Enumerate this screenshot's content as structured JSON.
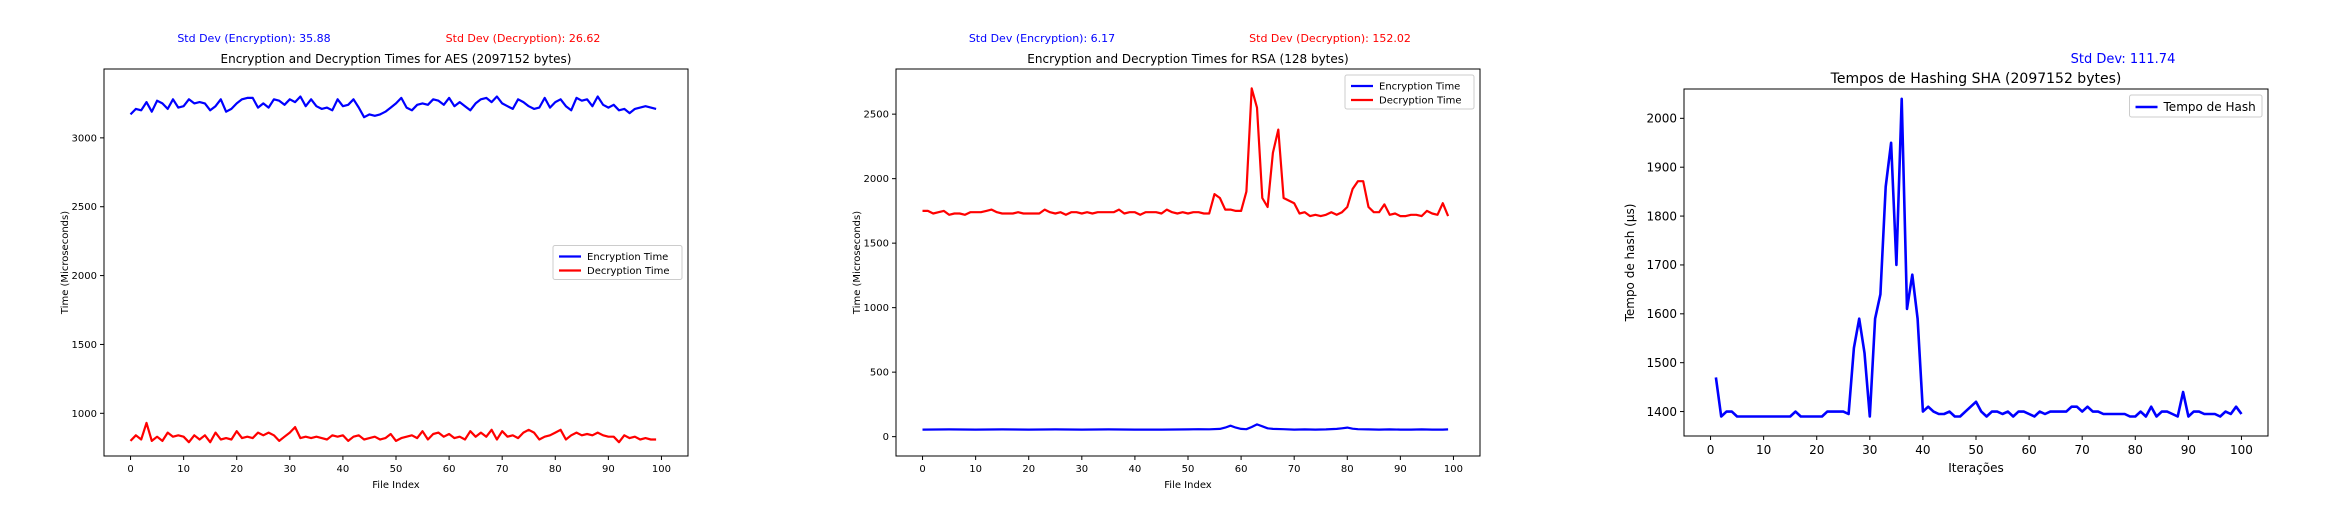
{
  "chart_data": [
    {
      "type": "line",
      "title": "Encryption and Decryption Times for AES (2097152 bytes)",
      "xlabel": "File Index",
      "ylabel": "Time (Microseconds)",
      "annotations": [
        "Std Dev (Encryption): 35.88",
        "Std Dev (Decryption): 26.62"
      ],
      "annotation_colors": [
        "#0000ff",
        "#ff0000"
      ],
      "xlim": [
        -5,
        105
      ],
      "ylim": [
        690,
        3500
      ],
      "xticks": [
        0,
        10,
        20,
        30,
        40,
        50,
        60,
        70,
        80,
        90,
        100
      ],
      "yticks": [
        1000,
        1500,
        2000,
        2500,
        3000
      ],
      "legend_position": "center-right",
      "grid": false,
      "series": [
        {
          "name": "Encryption Time",
          "color": "#0000ff",
          "x": [
            0,
            1,
            2,
            3,
            4,
            5,
            6,
            7,
            8,
            9,
            10,
            11,
            12,
            13,
            14,
            15,
            16,
            17,
            18,
            19,
            20,
            21,
            22,
            23,
            24,
            25,
            26,
            27,
            28,
            29,
            30,
            31,
            32,
            33,
            34,
            35,
            36,
            37,
            38,
            39,
            40,
            41,
            42,
            43,
            44,
            45,
            46,
            47,
            48,
            49,
            50,
            51,
            52,
            53,
            54,
            55,
            56,
            57,
            58,
            59,
            60,
            61,
            62,
            63,
            64,
            65,
            66,
            67,
            68,
            69,
            70,
            71,
            72,
            73,
            74,
            75,
            76,
            77,
            78,
            79,
            80,
            81,
            82,
            83,
            84,
            85,
            86,
            87,
            88,
            89,
            90,
            91,
            92,
            93,
            94,
            95,
            96,
            97,
            98,
            99
          ],
          "values": [
            3170,
            3210,
            3200,
            3260,
            3190,
            3270,
            3250,
            3210,
            3280,
            3220,
            3230,
            3280,
            3250,
            3260,
            3250,
            3200,
            3230,
            3280,
            3190,
            3210,
            3250,
            3280,
            3290,
            3290,
            3220,
            3250,
            3220,
            3280,
            3270,
            3240,
            3280,
            3260,
            3300,
            3230,
            3280,
            3230,
            3210,
            3220,
            3200,
            3280,
            3230,
            3240,
            3280,
            3220,
            3150,
            3170,
            3160,
            3170,
            3190,
            3220,
            3250,
            3290,
            3220,
            3200,
            3240,
            3250,
            3240,
            3280,
            3270,
            3240,
            3290,
            3230,
            3260,
            3230,
            3200,
            3250,
            3280,
            3290,
            3260,
            3300,
            3250,
            3230,
            3210,
            3280,
            3260,
            3230,
            3210,
            3220,
            3290,
            3220,
            3260,
            3280,
            3230,
            3200,
            3290,
            3270,
            3280,
            3230,
            3300,
            3240,
            3220,
            3240,
            3200,
            3210,
            3180,
            3210,
            3220,
            3230,
            3220,
            3210
          ]
        },
        {
          "name": "Decryption Time",
          "color": "#ff0000",
          "x": [
            0,
            1,
            2,
            3,
            4,
            5,
            6,
            7,
            8,
            9,
            10,
            11,
            12,
            13,
            14,
            15,
            16,
            17,
            18,
            19,
            20,
            21,
            22,
            23,
            24,
            25,
            26,
            27,
            28,
            29,
            30,
            31,
            32,
            33,
            34,
            35,
            36,
            37,
            38,
            39,
            40,
            41,
            42,
            43,
            44,
            45,
            46,
            47,
            48,
            49,
            50,
            51,
            52,
            53,
            54,
            55,
            56,
            57,
            58,
            59,
            60,
            61,
            62,
            63,
            64,
            65,
            66,
            67,
            68,
            69,
            70,
            71,
            72,
            73,
            74,
            75,
            76,
            77,
            78,
            79,
            80,
            81,
            82,
            83,
            84,
            85,
            86,
            87,
            88,
            89,
            90,
            91,
            92,
            93,
            94,
            95,
            96,
            97,
            98,
            99
          ],
          "values": [
            800,
            840,
            810,
            930,
            800,
            830,
            800,
            860,
            830,
            840,
            830,
            790,
            840,
            810,
            840,
            790,
            860,
            810,
            820,
            810,
            870,
            820,
            830,
            820,
            860,
            840,
            860,
            840,
            800,
            830,
            860,
            900,
            820,
            830,
            820,
            830,
            820,
            810,
            840,
            830,
            840,
            800,
            830,
            840,
            810,
            820,
            830,
            810,
            820,
            850,
            800,
            820,
            830,
            840,
            820,
            870,
            810,
            850,
            860,
            830,
            850,
            820,
            830,
            810,
            870,
            830,
            860,
            830,
            880,
            810,
            870,
            830,
            840,
            820,
            860,
            880,
            860,
            810,
            830,
            840,
            860,
            880,
            810,
            840,
            860,
            840,
            850,
            840,
            860,
            840,
            830,
            830,
            790,
            840,
            820,
            830,
            810,
            820,
            810,
            810
          ]
        }
      ]
    },
    {
      "type": "line",
      "title": "Encryption and Decryption Times for RSA (128 bytes)",
      "xlabel": "File Index",
      "ylabel": "Time (Microseconds)",
      "annotations": [
        "Std Dev (Encryption): 6.17",
        "Std Dev (Decryption): 152.02"
      ],
      "annotation_colors": [
        "#0000ff",
        "#ff0000"
      ],
      "xlim": [
        -5,
        105
      ],
      "ylim": [
        -150,
        2850
      ],
      "xticks": [
        0,
        10,
        20,
        30,
        40,
        50,
        60,
        70,
        80,
        90,
        100
      ],
      "yticks": [
        0,
        500,
        1000,
        1500,
        2000,
        2500
      ],
      "legend_position": "upper-right",
      "grid": false,
      "series": [
        {
          "name": "Encryption Time",
          "color": "#0000ff",
          "x": [
            0,
            5,
            10,
            15,
            20,
            25,
            30,
            35,
            40,
            45,
            50,
            52,
            54,
            56,
            57,
            58,
            59,
            60,
            61,
            62,
            63,
            64,
            65,
            66,
            68,
            70,
            72,
            74,
            76,
            78,
            79,
            80,
            81,
            82,
            84,
            86,
            88,
            90,
            92,
            94,
            96,
            98,
            99
          ],
          "values": [
            55,
            56,
            55,
            56,
            55,
            56,
            55,
            56,
            55,
            55,
            56,
            58,
            57,
            60,
            70,
            85,
            70,
            60,
            58,
            75,
            95,
            80,
            65,
            60,
            58,
            55,
            56,
            55,
            56,
            60,
            65,
            70,
            62,
            58,
            56,
            55,
            56,
            55,
            55,
            56,
            55,
            55,
            56
          ]
        },
        {
          "name": "Decryption Time",
          "color": "#ff0000",
          "x": [
            0,
            1,
            2,
            3,
            4,
            5,
            6,
            7,
            8,
            9,
            10,
            11,
            12,
            13,
            14,
            15,
            16,
            17,
            18,
            19,
            20,
            21,
            22,
            23,
            24,
            25,
            26,
            27,
            28,
            29,
            30,
            31,
            32,
            33,
            34,
            35,
            36,
            37,
            38,
            39,
            40,
            41,
            42,
            43,
            44,
            45,
            46,
            47,
            48,
            49,
            50,
            51,
            52,
            53,
            54,
            55,
            56,
            57,
            58,
            59,
            60,
            61,
            62,
            63,
            64,
            65,
            66,
            67,
            68,
            69,
            70,
            71,
            72,
            73,
            74,
            75,
            76,
            77,
            78,
            79,
            80,
            81,
            82,
            83,
            84,
            85,
            86,
            87,
            88,
            89,
            90,
            91,
            92,
            93,
            94,
            95,
            96,
            97,
            98,
            99
          ],
          "values": [
            1750,
            1750,
            1730,
            1740,
            1750,
            1720,
            1730,
            1730,
            1720,
            1740,
            1740,
            1740,
            1750,
            1760,
            1740,
            1730,
            1730,
            1730,
            1740,
            1730,
            1730,
            1730,
            1730,
            1760,
            1740,
            1730,
            1740,
            1720,
            1740,
            1740,
            1730,
            1740,
            1730,
            1740,
            1740,
            1740,
            1740,
            1760,
            1730,
            1740,
            1740,
            1720,
            1740,
            1740,
            1740,
            1730,
            1760,
            1740,
            1730,
            1740,
            1730,
            1740,
            1740,
            1730,
            1730,
            1880,
            1850,
            1760,
            1760,
            1750,
            1750,
            1900,
            2700,
            2550,
            1850,
            1780,
            2200,
            2380,
            1850,
            1830,
            1810,
            1730,
            1740,
            1710,
            1720,
            1710,
            1720,
            1740,
            1720,
            1740,
            1780,
            1920,
            1980,
            1980,
            1780,
            1740,
            1740,
            1800,
            1720,
            1730,
            1710,
            1710,
            1720,
            1720,
            1710,
            1750,
            1730,
            1720,
            1810,
            1710
          ]
        }
      ]
    },
    {
      "type": "line",
      "title": "Tempos de Hashing SHA (2097152 bytes)",
      "xlabel": "Iterações",
      "ylabel": "Tempo de hash (µs)",
      "annotations": [
        "Std Dev: 111.74"
      ],
      "annotation_colors": [
        "#0000ff"
      ],
      "xlim": [
        -5,
        105
      ],
      "ylim": [
        1350,
        2060
      ],
      "xticks": [
        0,
        10,
        20,
        30,
        40,
        50,
        60,
        70,
        80,
        90,
        100
      ],
      "yticks": [
        1400,
        1500,
        1600,
        1700,
        1800,
        1900,
        2000
      ],
      "legend_position": "upper-right",
      "grid": false,
      "series": [
        {
          "name": "Tempo de Hash",
          "color": "#0000ff",
          "x": [
            1,
            2,
            3,
            4,
            5,
            6,
            7,
            8,
            9,
            10,
            11,
            12,
            13,
            14,
            15,
            16,
            17,
            18,
            19,
            20,
            21,
            22,
            23,
            24,
            25,
            26,
            27,
            28,
            29,
            30,
            31,
            32,
            33,
            34,
            35,
            36,
            37,
            38,
            39,
            40,
            41,
            42,
            43,
            44,
            45,
            46,
            47,
            48,
            49,
            50,
            51,
            52,
            53,
            54,
            55,
            56,
            57,
            58,
            59,
            60,
            61,
            62,
            63,
            64,
            65,
            66,
            67,
            68,
            69,
            70,
            71,
            72,
            73,
            74,
            75,
            76,
            77,
            78,
            79,
            80,
            81,
            82,
            83,
            84,
            85,
            86,
            87,
            88,
            89,
            90,
            91,
            92,
            93,
            94,
            95,
            96,
            97,
            98,
            99,
            100
          ],
          "values": [
            1470,
            1390,
            1400,
            1400,
            1390,
            1390,
            1390,
            1390,
            1390,
            1390,
            1390,
            1390,
            1390,
            1390,
            1390,
            1400,
            1390,
            1390,
            1390,
            1390,
            1390,
            1400,
            1400,
            1400,
            1400,
            1395,
            1530,
            1590,
            1520,
            1390,
            1590,
            1640,
            1860,
            1950,
            1700,
            2040,
            1610,
            1680,
            1590,
            1400,
            1410,
            1400,
            1395,
            1395,
            1400,
            1390,
            1390,
            1400,
            1410,
            1420,
            1400,
            1390,
            1400,
            1400,
            1395,
            1400,
            1390,
            1400,
            1400,
            1395,
            1390,
            1400,
            1395,
            1400,
            1400,
            1400,
            1400,
            1410,
            1410,
            1400,
            1410,
            1400,
            1400,
            1395,
            1395,
            1395,
            1395,
            1395,
            1390,
            1390,
            1400,
            1390,
            1410,
            1390,
            1400,
            1400,
            1395,
            1390,
            1440,
            1390,
            1400,
            1400,
            1395,
            1395,
            1395,
            1390,
            1400,
            1395,
            1410,
            1395
          ]
        }
      ]
    }
  ]
}
